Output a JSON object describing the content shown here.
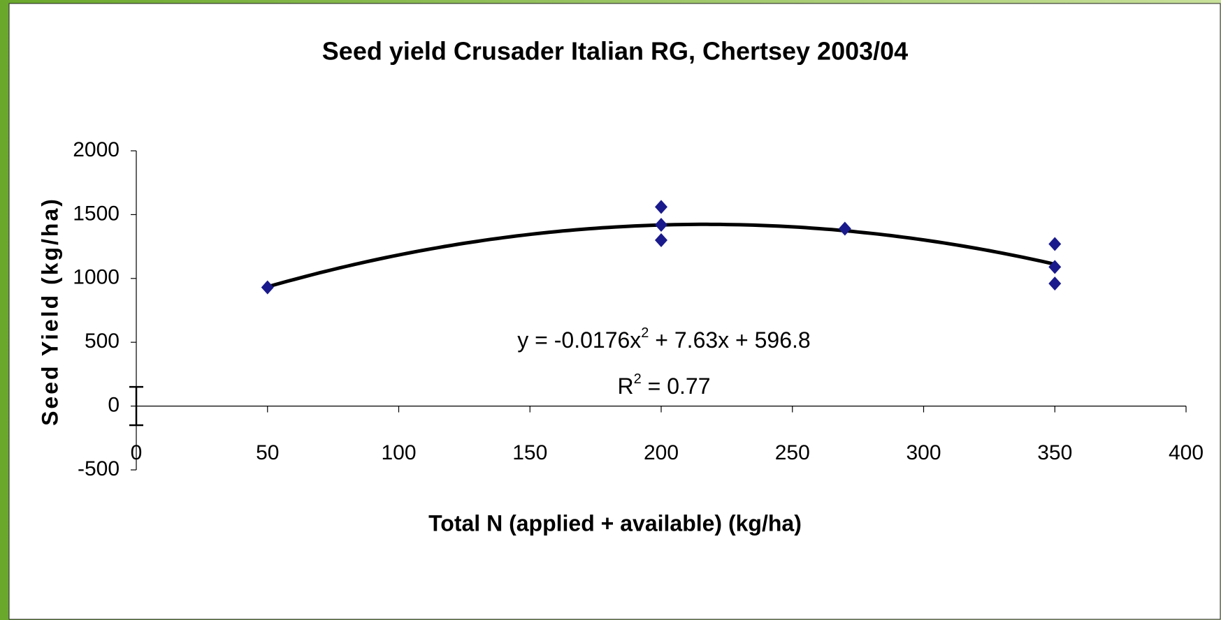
{
  "chart_data": {
    "type": "scatter",
    "title": "Seed yield Crusader Italian RG, Chertsey 2003/04",
    "x_label": "Total N (applied + available) (kg/ha)",
    "y_label": "Seed Yield (kg/ha)",
    "series": [
      {
        "name": "Seed yield",
        "color": "#1a1a8c",
        "x": [
          50,
          200,
          200,
          200,
          270,
          350,
          350,
          350
        ],
        "values": [
          930,
          1560,
          1420,
          1300,
          1390,
          1270,
          1090,
          960
        ]
      }
    ],
    "error_bar": {
      "x": 0,
      "value": 0,
      "error": 150
    },
    "trendline": {
      "coefficients": [
        -0.0176,
        7.63,
        596.8
      ],
      "x_range": [
        50,
        350
      ],
      "color": "#000000"
    },
    "equation_label": [
      "y = -0.0176x",
      "2",
      " + 7.63x + 596.8"
    ],
    "r2_label": [
      "R",
      "2",
      " = 0.77"
    ],
    "xlim": [
      0,
      400
    ],
    "xticks": [
      0,
      50,
      100,
      150,
      200,
      250,
      300,
      350,
      400
    ],
    "ylim": [
      -500,
      2000
    ],
    "yticks": [
      -500,
      0,
      500,
      1000,
      1500,
      2000
    ]
  }
}
